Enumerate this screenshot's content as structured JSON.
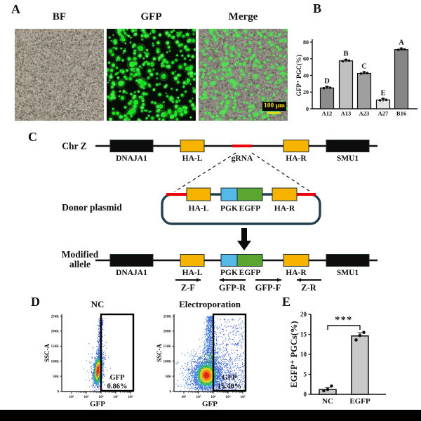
{
  "figure": {
    "panel_a": {
      "letter": "A",
      "image_titles": [
        "BF",
        "GFP",
        "Merge"
      ],
      "scale_bar": "100 μm"
    },
    "panel_b": {
      "letter": "B",
      "ylabel": "GFP⁺ PGC(%)",
      "categories": [
        "A12",
        "A13",
        "A23",
        "A27",
        "B16"
      ],
      "values": [
        25,
        57.5,
        42.5,
        10.5,
        71
      ],
      "sig_letters": [
        "D",
        "B",
        "C",
        "E",
        "A"
      ],
      "errors": [
        1.5,
        1.5,
        1.5,
        2,
        1.5
      ],
      "yticks": [
        0,
        20,
        40,
        60,
        80
      ]
    },
    "panel_c": {
      "letter": "C",
      "row1_label": "Chr Z",
      "row2_label": "Donor plasmid",
      "row3_label_line1": "Modified",
      "row3_label_line2": "allele",
      "chr_genes": [
        "DNAJA1",
        "HA-L",
        "gRNA",
        "HA-R",
        "SMU1"
      ],
      "plasmid_elements": [
        "HA-L",
        "PGK",
        "EGFP",
        "HA-R"
      ],
      "allele_elements": [
        "DNAJA1",
        "HA-L",
        "PGK",
        "EGFP",
        "HA-R",
        "SMU1"
      ],
      "primers": [
        "Z-F",
        "GFP-R",
        "GFP-F",
        "Z-R"
      ]
    },
    "panel_d": {
      "letter": "D",
      "plots": [
        {
          "title": "NC",
          "gate_label": "GFP",
          "gate_value": "0.86%",
          "xlabel": "GFP",
          "ylabel": "SSC-A"
        },
        {
          "title": "Electroporation",
          "gate_label": "GFP",
          "gate_value": "15.40%",
          "xlabel": "GFP",
          "ylabel": "SSC-A"
        }
      ],
      "yticks": [
        "0",
        "50K",
        "100K",
        "150K",
        "200K",
        "250K"
      ],
      "xtick_base": "10",
      "xtick_exponents": [
        "¹",
        "²",
        "³",
        "⁴",
        "⁵"
      ]
    },
    "panel_e": {
      "letter": "E",
      "ylabel": "EGFP⁺ PGCs(%)",
      "categories": [
        "NC",
        "EGFP"
      ],
      "values": [
        1.2,
        14.6
      ],
      "points": [
        [
          0.9,
          1.4,
          1.9
        ],
        [
          13.6,
          14.9,
          15.3
        ]
      ],
      "errors": [
        0.5,
        0.8
      ],
      "significance": "***",
      "yticks": [
        0,
        5,
        10,
        15,
        20
      ]
    }
  },
  "colors": {
    "yellow_box": "#f6b400",
    "blue_box": "#55b8e8",
    "green_box": "#5aa630",
    "red_segment": "#e8000b",
    "black_box": "#0d0d0d",
    "plasmid_outline": "#24404f",
    "bar_fills_b": [
      "#8c8c8c",
      "#bfbfbf",
      "#9f9f9f",
      "#e4e4e4",
      "#868686"
    ],
    "bar_fill_e": "#c9c9c9",
    "scalebar_text": "#ffe100"
  },
  "chart_data": [
    {
      "type": "bar",
      "panel": "B",
      "categories": [
        "A12",
        "A13",
        "A23",
        "A27",
        "B16"
      ],
      "values": [
        25,
        57.5,
        42.5,
        10.5,
        71
      ],
      "group_letters": [
        "D",
        "B",
        "C",
        "E",
        "A"
      ],
      "xlabel": "",
      "ylabel": "GFP⁺ PGC(%)",
      "ylim": [
        0,
        80
      ],
      "yticks": [
        0,
        20,
        40,
        60,
        80
      ],
      "grid": false,
      "points_per_bar": 3
    },
    {
      "type": "scatter",
      "panel": "D",
      "subtype": "flow-cytometry",
      "x_scale": "log10",
      "x_range_exponents": [
        1,
        5
      ],
      "y_ticks": [
        "0",
        "50K",
        "100K",
        "150K",
        "200K",
        "250K"
      ],
      "plots": [
        {
          "title": "NC",
          "xlabel": "GFP",
          "ylabel": "SSC-A",
          "gate": {
            "label": "GFP",
            "value_pct": 0.86
          }
        },
        {
          "title": "Electroporation",
          "xlabel": "GFP",
          "ylabel": "SSC-A",
          "gate": {
            "label": "GFP",
            "value_pct": 15.4
          }
        }
      ]
    },
    {
      "type": "bar",
      "panel": "E",
      "categories": [
        "NC",
        "EGFP"
      ],
      "values": [
        1.2,
        14.6
      ],
      "points": [
        [
          0.9,
          1.4,
          1.9
        ],
        [
          13.6,
          14.9,
          15.3
        ]
      ],
      "errors": [
        0.5,
        0.8
      ],
      "significance": "***",
      "xlabel": "",
      "ylabel": "EGFP⁺ PGCs(%)",
      "ylim": [
        0,
        20
      ],
      "yticks": [
        0,
        5,
        10,
        15,
        20
      ],
      "grid": false
    }
  ]
}
